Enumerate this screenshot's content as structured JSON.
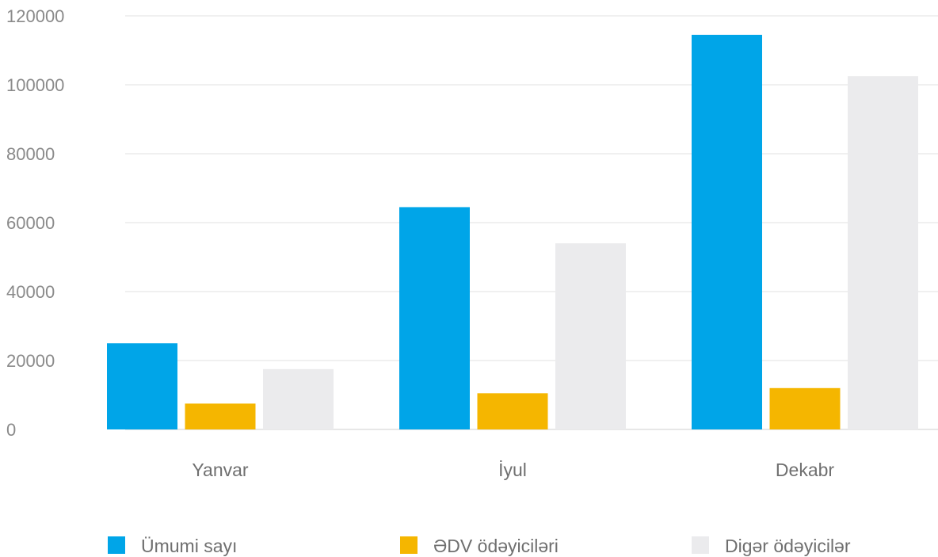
{
  "chart_data": {
    "type": "bar",
    "categories": [
      "Yanvar",
      "İyul",
      "Dekabr"
    ],
    "series": [
      {
        "name": "Ümumi sayı",
        "color": "#00a5e8",
        "values": [
          25000,
          64500,
          114500
        ]
      },
      {
        "name": "ƏDV ödəyiciləri",
        "color": "#f5b600",
        "values": [
          7500,
          10500,
          12000
        ]
      },
      {
        "name": "Digər ödəyicilər",
        "color": "#ebebed",
        "values": [
          17500,
          54000,
          102500
        ]
      }
    ],
    "title": "",
    "xlabel": "",
    "ylabel": "",
    "ylim": [
      0,
      120000
    ],
    "yticks": [
      "0",
      "20000",
      "40000",
      "60000",
      "80000",
      "100000",
      "120000"
    ],
    "grid": true,
    "legend_position": "bottom"
  }
}
